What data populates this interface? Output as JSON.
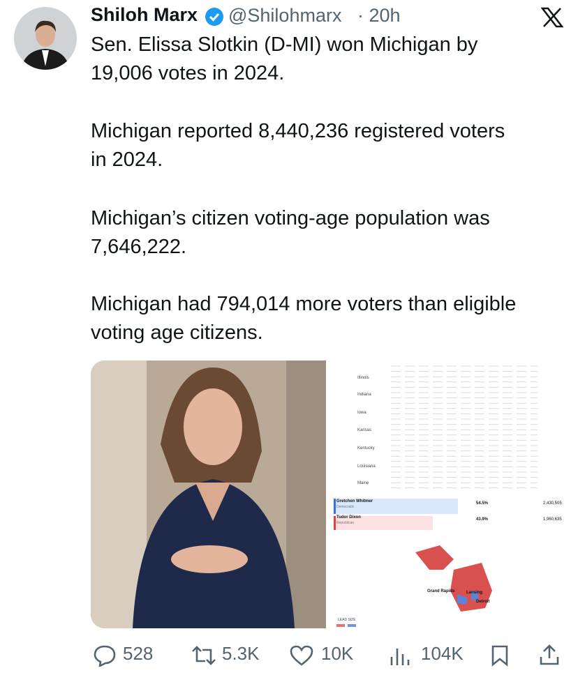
{
  "header": {
    "name": "Shiloh Marx",
    "handle": "@Shilohmarx",
    "time": "· 20h"
  },
  "text": [
    [
      "Sen. Elissa Slotkin (D-MI) won Michigan by",
      "19,006 votes in 2024."
    ],
    [
      "Michigan reported 8,440,236 registered voters",
      "in 2024."
    ],
    [
      "Michigan’s citizen voting-age population was",
      "7,646,222."
    ],
    [
      "Michigan had 794,014 more voters than eligible",
      "voting age citizens."
    ]
  ],
  "image": {
    "states": [
      "Illinois",
      "Indiana",
      "Iowa",
      "Kansas",
      "Kentucky",
      "Louisiana",
      "Maine"
    ],
    "candidates": [
      {
        "name": "Gretchen Whitmer",
        "party": "Democratic",
        "percent": "54.5%",
        "votes": "2,430,505"
      },
      {
        "name": "Tudor Dixon",
        "party": "Republican",
        "percent": "43.9%",
        "votes": "1,960,635"
      }
    ],
    "cities": [
      "Grand Rapids",
      "Lansing",
      "Detroit"
    ],
    "legend": "LEAD SIZE"
  },
  "stats": {
    "replies": "528",
    "reposts": "5.3K",
    "likes": "10K",
    "views": "104K"
  }
}
